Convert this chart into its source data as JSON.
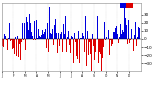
{
  "title": "",
  "n_bars": 365,
  "y_min": -40,
  "y_max": 45,
  "yticks": [
    -30,
    -20,
    -10,
    0,
    10,
    20,
    30
  ],
  "background_color": "#ffffff",
  "bar_color_pos": "#0000dd",
  "bar_color_neg": "#dd0000",
  "grid_color": "#bbbbbb",
  "seed": 42
}
